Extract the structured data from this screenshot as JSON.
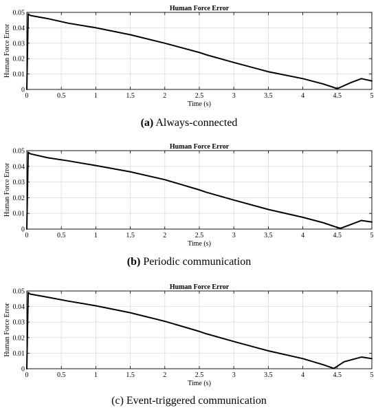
{
  "chart_data": [
    {
      "type": "line",
      "title": "Human Force Error",
      "xlabel": "Time (s)",
      "ylabel": "Human Force Error",
      "xlim": [
        0,
        5
      ],
      "ylim": [
        0,
        0.05
      ],
      "xticks": [
        0,
        0.5,
        1,
        1.5,
        2,
        2.5,
        3,
        3.5,
        4,
        4.5,
        5
      ],
      "xtick_labels": [
        "0",
        "0.5",
        "1",
        "1.5",
        "2",
        "2.5",
        "3",
        "3.5",
        "4",
        "4.5",
        "5"
      ],
      "yticks": [
        0,
        0.01,
        0.02,
        0.03,
        0.04,
        0.05
      ],
      "ytick_labels": [
        "0",
        "0.01",
        "0.02",
        "0.03",
        "0.04",
        "0.05"
      ],
      "grid": true,
      "series": [
        {
          "color": "#000000",
          "x": [
            0,
            0.02,
            0.05,
            0.3,
            0.6,
            1.0,
            1.5,
            2.0,
            2.5,
            2.6,
            3.0,
            3.5,
            4.0,
            4.3,
            4.5,
            4.7,
            4.85,
            5.0
          ],
          "y": [
            0.0,
            0.049,
            0.048,
            0.046,
            0.043,
            0.04,
            0.0355,
            0.03,
            0.024,
            0.0225,
            0.0175,
            0.0115,
            0.007,
            0.0035,
            0.0005,
            0.0045,
            0.007,
            0.0055
          ]
        }
      ],
      "caption": {
        "label": "(a)",
        "text": " Always-connected"
      }
    },
    {
      "type": "line",
      "title": "Human Force Error",
      "xlabel": "Time (s)",
      "ylabel": "Human Force Error",
      "xlim": [
        0,
        5
      ],
      "ylim": [
        0,
        0.05
      ],
      "xticks": [
        0,
        0.5,
        1,
        1.5,
        2,
        2.5,
        3,
        3.5,
        4,
        4.5,
        5
      ],
      "xtick_labels": [
        "0",
        "0.5",
        "1",
        "1.5",
        "2",
        "2.5",
        "3",
        "3.5",
        "4",
        "4.5",
        "5"
      ],
      "yticks": [
        0,
        0.01,
        0.02,
        0.03,
        0.04,
        0.05
      ],
      "ytick_labels": [
        "0",
        "0.01",
        "0.02",
        "0.03",
        "0.04",
        "0.05"
      ],
      "grid": true,
      "series": [
        {
          "color": "#000000",
          "x": [
            0,
            0.02,
            0.05,
            0.3,
            0.6,
            1.0,
            1.5,
            2.0,
            2.5,
            2.6,
            3.0,
            3.5,
            4.0,
            4.3,
            4.5,
            4.55,
            4.7,
            4.85,
            5.0
          ],
          "y": [
            0.0,
            0.049,
            0.048,
            0.0455,
            0.0435,
            0.0405,
            0.0365,
            0.0315,
            0.025,
            0.0235,
            0.0185,
            0.0125,
            0.0075,
            0.004,
            0.001,
            0.0005,
            0.003,
            0.0055,
            0.0045
          ]
        }
      ],
      "caption": {
        "label": "(b)",
        "text": " Periodic communication"
      }
    },
    {
      "type": "line",
      "title": "Human Force Error",
      "xlabel": "Time (s)",
      "ylabel": "Human Force Error",
      "xlim": [
        0,
        5
      ],
      "ylim": [
        0,
        0.05
      ],
      "xticks": [
        0,
        0.5,
        1,
        1.5,
        2,
        2.5,
        3,
        3.5,
        4,
        4.5,
        5
      ],
      "xtick_labels": [
        "0",
        "0.5",
        "1",
        "1.5",
        "2",
        "2.5",
        "3",
        "3.5",
        "4",
        "4.5",
        "5"
      ],
      "yticks": [
        0,
        0.01,
        0.02,
        0.03,
        0.04,
        0.05
      ],
      "ytick_labels": [
        "0",
        "0.01",
        "0.02",
        "0.03",
        "0.04",
        "0.05"
      ],
      "grid": true,
      "series": [
        {
          "color": "#000000",
          "x": [
            0,
            0.02,
            0.05,
            0.3,
            0.6,
            1.0,
            1.5,
            2.0,
            2.5,
            2.6,
            3.0,
            3.5,
            4.0,
            4.3,
            4.45,
            4.6,
            4.85,
            5.0
          ],
          "y": [
            0.0,
            0.049,
            0.048,
            0.046,
            0.0435,
            0.0405,
            0.036,
            0.0305,
            0.024,
            0.0225,
            0.0175,
            0.0115,
            0.0065,
            0.0025,
            0.0002,
            0.0045,
            0.0075,
            0.0065
          ]
        }
      ],
      "caption": {
        "label": "(c)",
        "text": " Event-triggered communication"
      }
    }
  ]
}
